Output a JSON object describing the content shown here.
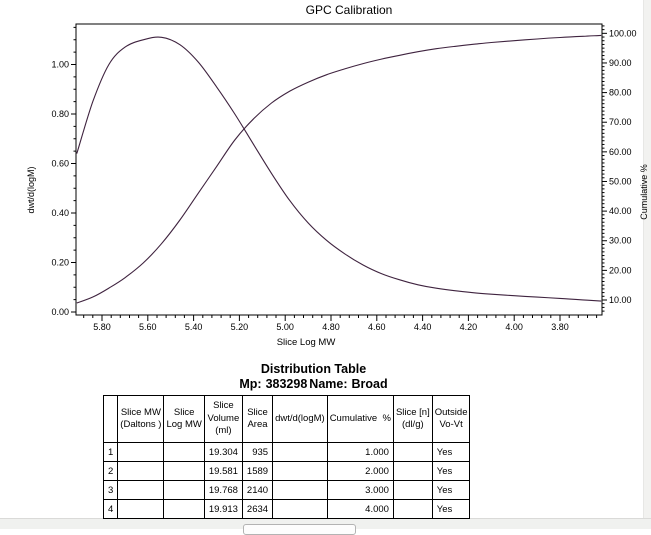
{
  "page": {
    "background": "#ffffff"
  },
  "chart_data": {
    "type": "line",
    "title": "GPC Calibration",
    "xlabel": "Slice Log MW",
    "x_axis_reversed": true,
    "xlim": [
      5.91,
      3.62
    ],
    "x_ticks": [
      5.8,
      5.6,
      5.4,
      5.2,
      5.0,
      4.8,
      4.6,
      4.4,
      4.2,
      4.0,
      3.8
    ],
    "grid": false,
    "line_color": "#3f233f",
    "left_axis": {
      "label": "dwt/d(logM)",
      "lim": [
        0.0,
        1.16
      ],
      "ticks": [
        0.0,
        0.2,
        0.4,
        0.6,
        0.8,
        1.0
      ]
    },
    "right_axis": {
      "label": "Cumulative %",
      "lim": [
        5.6,
        103.0
      ],
      "ticks": [
        10.0,
        20.0,
        30.0,
        40.0,
        50.0,
        60.0,
        70.0,
        80.0,
        90.0,
        100.0
      ]
    },
    "series": [
      {
        "name": "dwt/d(logM)",
        "axis": "left",
        "points": [
          [
            5.91,
            0.64
          ],
          [
            5.84,
            0.85
          ],
          [
            5.77,
            1.0
          ],
          [
            5.7,
            1.07
          ],
          [
            5.62,
            1.1
          ],
          [
            5.54,
            1.11
          ],
          [
            5.46,
            1.08
          ],
          [
            5.38,
            1.01
          ],
          [
            5.3,
            0.91
          ],
          [
            5.22,
            0.8
          ],
          [
            5.14,
            0.68
          ],
          [
            5.06,
            0.56
          ],
          [
            4.98,
            0.45
          ],
          [
            4.9,
            0.36
          ],
          [
            4.82,
            0.29
          ],
          [
            4.74,
            0.235
          ],
          [
            4.66,
            0.19
          ],
          [
            4.58,
            0.155
          ],
          [
            4.5,
            0.13
          ],
          [
            4.42,
            0.11
          ],
          [
            4.34,
            0.096
          ],
          [
            4.26,
            0.086
          ],
          [
            4.18,
            0.078
          ],
          [
            4.1,
            0.072
          ],
          [
            4.0,
            0.066
          ],
          [
            3.9,
            0.06
          ],
          [
            3.8,
            0.055
          ],
          [
            3.7,
            0.049
          ],
          [
            3.62,
            0.044
          ]
        ]
      },
      {
        "name": "Cumulative %",
        "axis": "right",
        "points": [
          [
            5.91,
            9.0
          ],
          [
            5.84,
            11.0
          ],
          [
            5.77,
            14.0
          ],
          [
            5.7,
            17.5
          ],
          [
            5.62,
            22.5
          ],
          [
            5.54,
            29.0
          ],
          [
            5.46,
            37.0
          ],
          [
            5.38,
            46.0
          ],
          [
            5.3,
            55.0
          ],
          [
            5.22,
            64.0
          ],
          [
            5.14,
            71.0
          ],
          [
            5.06,
            76.5
          ],
          [
            4.98,
            80.5
          ],
          [
            4.9,
            83.5
          ],
          [
            4.82,
            86.0
          ],
          [
            4.74,
            88.0
          ],
          [
            4.66,
            89.8
          ],
          [
            4.58,
            91.3
          ],
          [
            4.5,
            92.6
          ],
          [
            4.42,
            93.8
          ],
          [
            4.34,
            94.8
          ],
          [
            4.26,
            95.6
          ],
          [
            4.18,
            96.3
          ],
          [
            4.1,
            96.9
          ],
          [
            4.0,
            97.5
          ],
          [
            3.9,
            98.1
          ],
          [
            3.8,
            98.6
          ],
          [
            3.7,
            99.0
          ],
          [
            3.62,
            99.3
          ]
        ]
      }
    ]
  },
  "distribution_table": {
    "title": "Distribution Table",
    "mp_label": "Mp:",
    "mp_value": "383298",
    "name_label": "Name:",
    "name_value": "Broad",
    "columns": [
      [
        ""
      ],
      [
        "Slice MW",
        "(Daltons )"
      ],
      [
        "Slice",
        "Log MW"
      ],
      [
        "Slice",
        "Volume",
        "(ml)"
      ],
      [
        "Slice",
        "Area"
      ],
      [
        "dwt/d(logM)"
      ],
      [
        "Cumulative  %"
      ],
      [
        "Slice [n]",
        "(dl/g)"
      ],
      [
        "Outside",
        "Vo-Vt"
      ]
    ],
    "rows": [
      [
        "1",
        "",
        "",
        "19.304",
        "935",
        "",
        "1.000",
        "",
        "Yes"
      ],
      [
        "2",
        "",
        "",
        "19.581",
        "1589",
        "",
        "2.000",
        "",
        "Yes"
      ],
      [
        "3",
        "",
        "",
        "19.768",
        "2140",
        "",
        "3.000",
        "",
        "Yes"
      ],
      [
        "4",
        "",
        "",
        "19.913",
        "2634",
        "",
        "4.000",
        "",
        "Yes"
      ]
    ]
  }
}
